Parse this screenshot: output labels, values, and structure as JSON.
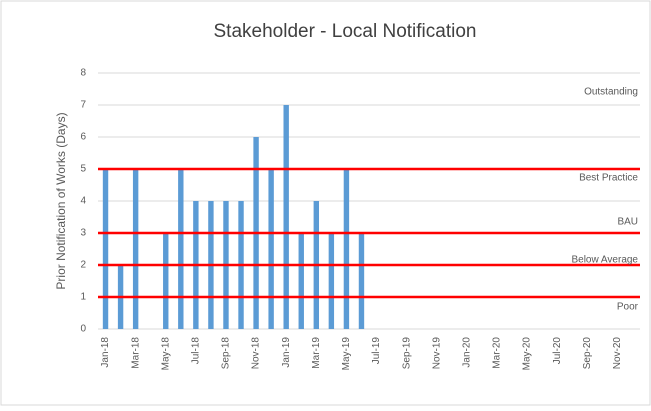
{
  "chart_data": {
    "type": "bar",
    "title": "Stakeholder - Local Notification",
    "y_label": "Prior Notification of Works (Days)",
    "categories": [
      "Jan-18",
      null,
      "Mar-18",
      null,
      "May-18",
      null,
      "Jul-18",
      null,
      "Sep-18",
      null,
      "Nov-18",
      null,
      "Jan-19",
      null,
      "Mar-19",
      null,
      "May-19",
      null,
      "Jul-19",
      null,
      "Sep-19",
      null,
      "Nov-19",
      null,
      "Jan-20",
      null,
      "Mar-20",
      null,
      "May-20",
      null,
      "Jul-20",
      null,
      "Sep-20",
      null,
      "Nov-20",
      null
    ],
    "values": [
      5,
      2,
      5,
      null,
      3,
      5,
      4,
      4,
      4,
      4,
      6,
      5,
      7,
      3,
      4,
      3,
      5,
      3,
      null,
      null,
      null,
      null,
      null,
      null,
      null,
      null,
      null,
      null,
      null,
      null,
      null,
      null,
      null,
      null,
      null,
      null
    ],
    "color": "#5b9bd5",
    "ylim": [
      0,
      8
    ],
    "yticks": [
      0,
      1,
      2,
      3,
      4,
      5,
      6,
      7,
      8
    ],
    "grid": true,
    "threshold_lines": [
      5,
      3,
      2,
      1
    ],
    "threshold_color": "#ff0000",
    "band_labels": [
      "Outstanding",
      "Best Practice",
      "BAU",
      "Below Average",
      "Poor"
    ]
  }
}
